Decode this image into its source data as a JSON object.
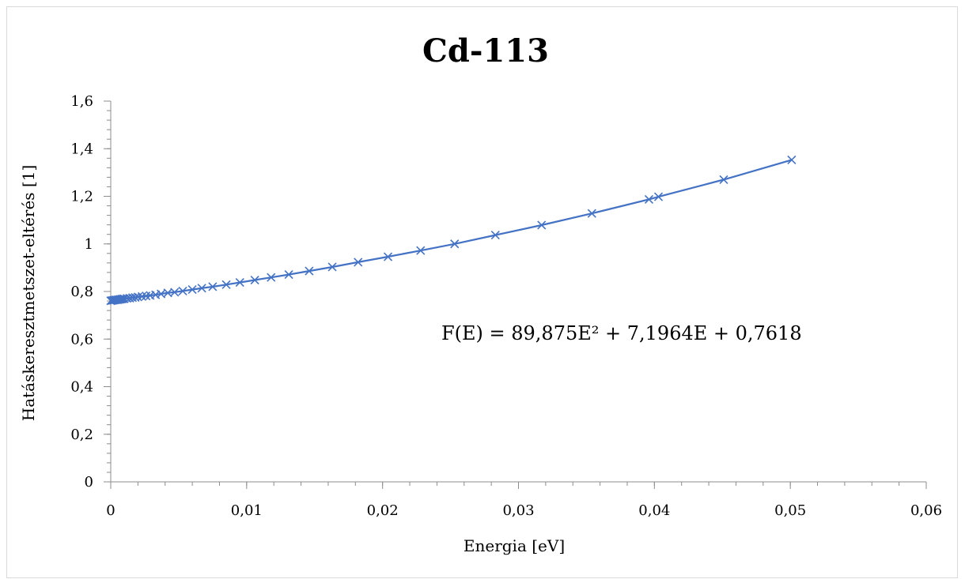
{
  "chart_data": {
    "type": "scatter",
    "title": "Cd-113",
    "xlabel": "Energia [eV]",
    "ylabel": "Hatáskeresztmetszet-eltérés [1]",
    "xlim": [
      0,
      0.06
    ],
    "ylim": [
      0,
      1.6
    ],
    "x_ticks": [
      "0",
      "0,01",
      "0,02",
      "0,03",
      "0,04",
      "0,05",
      "0,06"
    ],
    "y_ticks": [
      "0",
      "0,2",
      "0,4",
      "0,6",
      "0,8",
      "1",
      "1,2",
      "1,4",
      "1,6"
    ],
    "x_tick_values": [
      0,
      0.01,
      0.02,
      0.03,
      0.04,
      0.05,
      0.06
    ],
    "y_tick_values": [
      0,
      0.2,
      0.4,
      0.6,
      0.8,
      1.0,
      1.2,
      1.4,
      1.6
    ],
    "grid": false,
    "series": [
      {
        "marker": "x",
        "color": "#4472c4",
        "x": [
          0.0,
          0.0001,
          0.0002,
          0.0003,
          0.0004,
          0.0005,
          0.0006,
          0.0007,
          0.0008,
          0.0009,
          0.001,
          0.0012,
          0.0014,
          0.0016,
          0.0018,
          0.002,
          0.0023,
          0.0026,
          0.0029,
          0.0033,
          0.0037,
          0.0042,
          0.0047,
          0.0053,
          0.006,
          0.0067,
          0.0075,
          0.0085,
          0.0095,
          0.0106,
          0.0118,
          0.0131,
          0.0146,
          0.0163,
          0.0182,
          0.0204,
          0.0228,
          0.0253,
          0.0283,
          0.0317,
          0.0354,
          0.0396,
          0.0403,
          0.0451,
          0.0501
        ],
        "y": [
          0.761,
          0.762,
          0.763,
          0.764,
          0.765,
          0.765,
          0.766,
          0.767,
          0.768,
          0.769,
          0.769,
          0.771,
          0.772,
          0.774,
          0.775,
          0.777,
          0.779,
          0.781,
          0.783,
          0.786,
          0.79,
          0.794,
          0.797,
          0.802,
          0.808,
          0.814,
          0.82,
          0.829,
          0.838,
          0.848,
          0.859,
          0.871,
          0.886,
          0.903,
          0.923,
          0.946,
          0.972,
          1.0,
          1.037,
          1.079,
          1.128,
          1.187,
          1.198,
          1.27,
          1.353
        ]
      }
    ],
    "annotations": [
      "F(E) = 89,875E² + 7,1964E + 0,7618"
    ]
  }
}
